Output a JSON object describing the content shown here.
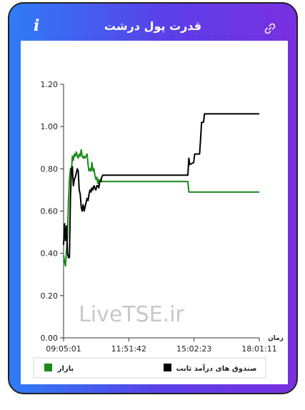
{
  "header": {
    "title": "قدرت پول درشت",
    "info_icon": "info-icon",
    "link_icon": "link-icon"
  },
  "watermark": "LiveTSE.ir",
  "colors": {
    "series_fund": "#000000",
    "series_market": "#1a8a1a",
    "header_gradient_start": "#2f7cf6",
    "header_gradient_end": "#7a2fe0"
  },
  "chart_data": {
    "type": "line",
    "xlabel": "زمان",
    "ylabel": "",
    "ylim": [
      0,
      1.2
    ],
    "yticks": [
      "0.00",
      "0.20",
      "0.40",
      "0.60",
      "0.80",
      "1.00",
      "1.20"
    ],
    "xticks": [
      "09:05:01",
      "11:51:42",
      "15:02:23",
      "18:01:11"
    ],
    "legend": "bottom",
    "series": [
      {
        "name": "صندوق های درآمد ثابت",
        "color": "#000000",
        "points": [
          [
            0.0,
            0.44
          ],
          [
            0.005,
            0.54
          ],
          [
            0.01,
            0.46
          ],
          [
            0.015,
            0.53
          ],
          [
            0.02,
            0.4
          ],
          [
            0.025,
            0.38
          ],
          [
            0.03,
            0.38
          ],
          [
            0.035,
            0.66
          ],
          [
            0.04,
            0.8
          ],
          [
            0.045,
            0.81
          ],
          [
            0.05,
            0.72
          ],
          [
            0.055,
            0.75
          ],
          [
            0.06,
            0.76
          ],
          [
            0.065,
            0.78
          ],
          [
            0.07,
            0.8
          ],
          [
            0.075,
            0.79
          ],
          [
            0.08,
            0.7
          ],
          [
            0.085,
            0.68
          ],
          [
            0.09,
            0.62
          ],
          [
            0.095,
            0.6
          ],
          [
            0.1,
            0.63
          ],
          [
            0.105,
            0.6
          ],
          [
            0.11,
            0.62
          ],
          [
            0.115,
            0.64
          ],
          [
            0.12,
            0.66
          ],
          [
            0.125,
            0.65
          ],
          [
            0.13,
            0.68
          ],
          [
            0.135,
            0.7
          ],
          [
            0.14,
            0.69
          ],
          [
            0.145,
            0.71
          ],
          [
            0.15,
            0.7
          ],
          [
            0.155,
            0.72
          ],
          [
            0.16,
            0.71
          ],
          [
            0.165,
            0.7
          ],
          [
            0.17,
            0.72
          ],
          [
            0.175,
            0.72
          ],
          [
            0.18,
            0.71
          ],
          [
            0.185,
            0.74
          ],
          [
            0.19,
            0.74
          ],
          [
            0.195,
            0.76
          ],
          [
            0.2,
            0.77
          ],
          [
            0.23,
            0.77
          ],
          [
            0.4,
            0.77
          ],
          [
            0.5,
            0.77
          ],
          [
            0.635,
            0.77
          ],
          [
            0.64,
            0.85
          ],
          [
            0.645,
            0.82
          ],
          [
            0.665,
            0.83
          ],
          [
            0.67,
            0.87
          ],
          [
            0.695,
            0.87
          ],
          [
            0.7,
            0.94
          ],
          [
            0.705,
            1.02
          ],
          [
            0.715,
            1.02
          ],
          [
            0.72,
            1.06
          ],
          [
            1.0,
            1.06
          ]
        ]
      },
      {
        "name": "بازار",
        "color": "#1a8a1a",
        "points": [
          [
            0.0,
            0.39
          ],
          [
            0.005,
            0.36
          ],
          [
            0.01,
            0.34
          ],
          [
            0.015,
            0.42
          ],
          [
            0.02,
            0.48
          ],
          [
            0.025,
            0.64
          ],
          [
            0.03,
            0.75
          ],
          [
            0.035,
            0.8
          ],
          [
            0.04,
            0.79
          ],
          [
            0.045,
            0.86
          ],
          [
            0.05,
            0.84
          ],
          [
            0.055,
            0.87
          ],
          [
            0.06,
            0.86
          ],
          [
            0.065,
            0.88
          ],
          [
            0.07,
            0.86
          ],
          [
            0.075,
            0.85
          ],
          [
            0.08,
            0.87
          ],
          [
            0.085,
            0.86
          ],
          [
            0.09,
            0.89
          ],
          [
            0.095,
            0.86
          ],
          [
            0.1,
            0.85
          ],
          [
            0.105,
            0.86
          ],
          [
            0.11,
            0.85
          ],
          [
            0.115,
            0.86
          ],
          [
            0.12,
            0.87
          ],
          [
            0.125,
            0.82
          ],
          [
            0.13,
            0.79
          ],
          [
            0.135,
            0.8
          ],
          [
            0.14,
            0.79
          ],
          [
            0.145,
            0.83
          ],
          [
            0.15,
            0.79
          ],
          [
            0.155,
            0.8
          ],
          [
            0.16,
            0.77
          ],
          [
            0.165,
            0.75
          ],
          [
            0.17,
            0.76
          ],
          [
            0.175,
            0.73
          ],
          [
            0.18,
            0.75
          ],
          [
            0.185,
            0.74
          ],
          [
            0.19,
            0.75
          ],
          [
            0.195,
            0.74
          ],
          [
            0.2,
            0.74
          ],
          [
            0.3,
            0.74
          ],
          [
            0.5,
            0.74
          ],
          [
            0.635,
            0.74
          ],
          [
            0.64,
            0.69
          ],
          [
            0.8,
            0.69
          ],
          [
            1.0,
            0.69
          ]
        ]
      }
    ]
  },
  "legend_items": [
    {
      "label": "صندوق های درآمد ثابت",
      "color": "#000000"
    },
    {
      "label": "بازار",
      "color": "#1a8a1a"
    }
  ]
}
